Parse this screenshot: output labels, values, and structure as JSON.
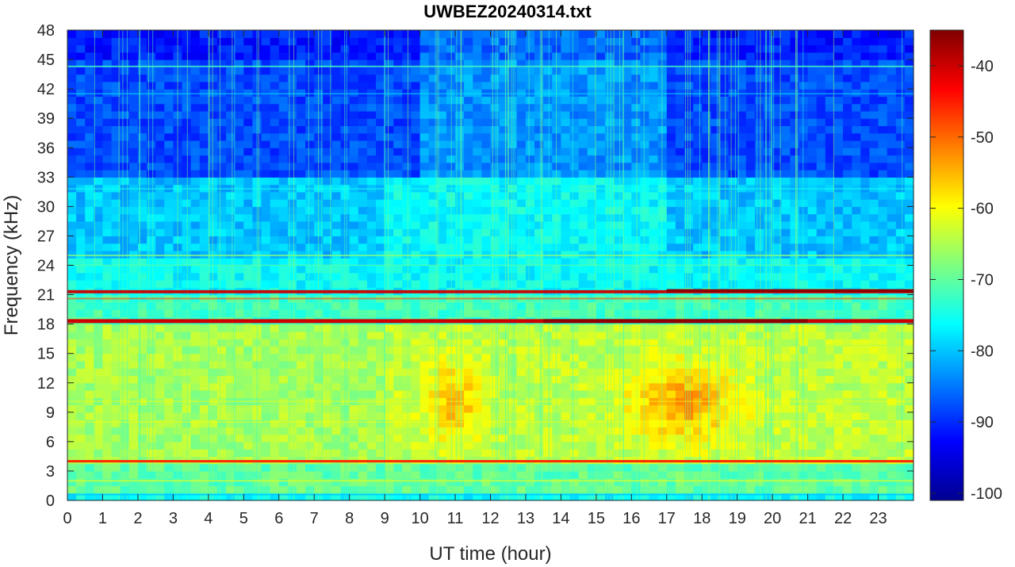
{
  "chart_data": {
    "type": "heatmap",
    "title": "UWBEZ20240314.txt",
    "xlabel": "UT time (hour)",
    "ylabel": "Frequency (kHz)",
    "xlim": [
      0,
      24
    ],
    "ylim": [
      0,
      48
    ],
    "xticks": [
      0,
      1,
      2,
      3,
      4,
      5,
      6,
      7,
      8,
      9,
      10,
      11,
      12,
      13,
      14,
      15,
      16,
      17,
      18,
      19,
      20,
      21,
      22,
      23
    ],
    "yticks": [
      0,
      3,
      6,
      9,
      12,
      15,
      18,
      21,
      24,
      27,
      30,
      33,
      36,
      39,
      42,
      45,
      48
    ],
    "colorbar": {
      "colormap": "jet",
      "clim": [
        -101,
        -35
      ],
      "ticks": [
        -100,
        -90,
        -80,
        -70,
        -60,
        -50,
        -40
      ]
    },
    "features": {
      "lower_band_khz": [
        4,
        18
      ],
      "lower_band_peak_hours": [
        [
          10.2,
          11.8
        ],
        [
          15.5,
          19.2
        ]
      ],
      "strong_lines_khz": [
        4.0,
        18.3,
        21.3
      ],
      "upper_region_level_db": -88
    }
  }
}
